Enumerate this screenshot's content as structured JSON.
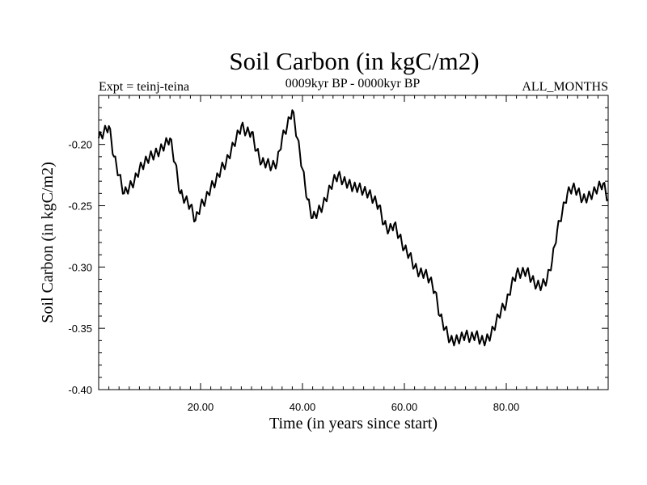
{
  "chart_data": {
    "type": "line",
    "title": "Soil Carbon (in kgC/m2)",
    "subtitle": "0009kyr BP - 0000kyr BP",
    "left_label": "Expt = teinj-teina",
    "right_label": "ALL_MONTHS",
    "xlabel": "Time (in years since start)",
    "ylabel": "Soil Carbon (in kgC/m2)",
    "xlim": [
      0,
      100
    ],
    "ylim": [
      -0.4,
      -0.16
    ],
    "x_ticks": [
      20,
      40,
      60,
      80
    ],
    "x_tick_labels": [
      "20.00",
      "40.00",
      "60.00",
      "80.00"
    ],
    "y_ticks": [
      -0.4,
      -0.35,
      -0.3,
      -0.25,
      -0.2
    ],
    "y_tick_labels": [
      "-0.40",
      "-0.35",
      "-0.30",
      "-0.25",
      "-0.20"
    ],
    "grid": false,
    "series": [
      {
        "name": "Soil Carbon",
        "color": "#000000",
        "x": [
          0,
          1,
          2,
          3,
          4,
          5,
          6,
          7,
          8,
          9,
          10,
          11,
          12,
          13,
          14,
          15,
          16,
          17,
          18,
          19,
          20,
          21,
          22,
          23,
          24,
          25,
          26,
          27,
          28,
          29,
          30,
          31,
          32,
          33,
          34,
          35,
          36,
          37,
          38,
          39,
          40,
          41,
          42,
          43,
          44,
          45,
          46,
          47,
          48,
          49,
          50,
          51,
          52,
          53,
          54,
          55,
          56,
          57,
          58,
          59,
          60,
          61,
          62,
          63,
          64,
          65,
          66,
          67,
          68,
          69,
          70,
          71,
          72,
          73,
          74,
          75,
          76,
          77,
          78,
          79,
          80,
          81,
          82,
          83,
          84,
          85,
          86,
          87,
          88,
          89,
          90,
          91,
          92,
          93,
          94,
          95,
          96,
          97,
          98,
          99,
          100
        ],
        "values": [
          -0.195,
          -0.19,
          -0.185,
          -0.21,
          -0.225,
          -0.24,
          -0.235,
          -0.23,
          -0.22,
          -0.215,
          -0.21,
          -0.208,
          -0.205,
          -0.2,
          -0.195,
          -0.215,
          -0.24,
          -0.245,
          -0.25,
          -0.262,
          -0.25,
          -0.245,
          -0.235,
          -0.23,
          -0.22,
          -0.215,
          -0.205,
          -0.195,
          -0.185,
          -0.19,
          -0.19,
          -0.205,
          -0.215,
          -0.215,
          -0.218,
          -0.215,
          -0.195,
          -0.185,
          -0.172,
          -0.195,
          -0.22,
          -0.245,
          -0.26,
          -0.255,
          -0.25,
          -0.24,
          -0.23,
          -0.225,
          -0.23,
          -0.232,
          -0.235,
          -0.235,
          -0.238,
          -0.24,
          -0.245,
          -0.25,
          -0.265,
          -0.27,
          -0.265,
          -0.275,
          -0.285,
          -0.29,
          -0.3,
          -0.305,
          -0.305,
          -0.31,
          -0.32,
          -0.34,
          -0.35,
          -0.36,
          -0.36,
          -0.358,
          -0.355,
          -0.358,
          -0.355,
          -0.36,
          -0.36,
          -0.355,
          -0.345,
          -0.335,
          -0.33,
          -0.315,
          -0.305,
          -0.305,
          -0.303,
          -0.31,
          -0.315,
          -0.315,
          -0.31,
          -0.295,
          -0.27,
          -0.255,
          -0.24,
          -0.235,
          -0.238,
          -0.245,
          -0.243,
          -0.24,
          -0.235,
          -0.232,
          -0.245
        ]
      }
    ]
  }
}
